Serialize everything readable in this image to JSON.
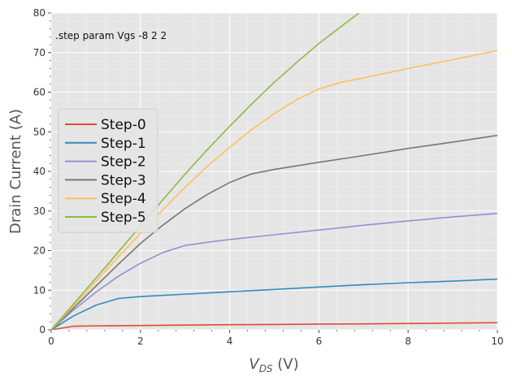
{
  "chart_data": {
    "type": "line",
    "title": "",
    "xlabel": "V",
    "xlabel_sub": "DS",
    "xlabel_unit": " (V)",
    "ylabel": "Drain Current (A)",
    "xlim": [
      0,
      10
    ],
    "ylim": [
      0,
      80
    ],
    "xticks": [
      0,
      2,
      4,
      6,
      8,
      10
    ],
    "yticks": [
      0,
      10,
      20,
      30,
      40,
      50,
      60,
      70,
      80
    ],
    "grid": true,
    "legend_position": "center-left",
    "annotation": ".step param Vgs -8 2 2",
    "background": "#e5e5e5",
    "series": [
      {
        "name": "Step-0",
        "color": "#e24a33",
        "x": [
          0,
          0.5,
          1,
          2,
          3,
          4,
          5,
          6,
          7,
          8,
          9,
          10
        ],
        "y": [
          0,
          0.9,
          1.0,
          1.1,
          1.2,
          1.3,
          1.35,
          1.45,
          1.5,
          1.6,
          1.7,
          1.8
        ]
      },
      {
        "name": "Step-1",
        "color": "#348abd",
        "x": [
          0,
          0.5,
          1,
          1.5,
          2,
          3,
          4,
          5,
          6,
          7,
          8,
          9,
          10
        ],
        "y": [
          0,
          3.5,
          6.2,
          7.9,
          8.4,
          9.0,
          9.6,
          10.2,
          10.8,
          11.4,
          11.9,
          12.3,
          12.8
        ]
      },
      {
        "name": "Step-2",
        "color": "#988ed5",
        "x": [
          0,
          0.5,
          1,
          1.5,
          2,
          2.5,
          3,
          3.5,
          4,
          5,
          6,
          7,
          8,
          9,
          10
        ],
        "y": [
          0,
          5.0,
          9.5,
          13.5,
          16.8,
          19.5,
          21.3,
          22.1,
          22.8,
          24.0,
          25.2,
          26.4,
          27.5,
          28.5,
          29.4
        ]
      },
      {
        "name": "Step-3",
        "color": "#777777",
        "x": [
          0,
          0.5,
          1,
          1.5,
          2,
          2.5,
          3,
          3.5,
          4,
          4.5,
          5,
          6,
          7,
          8,
          9,
          10
        ],
        "y": [
          0,
          5.5,
          11.0,
          16.5,
          21.8,
          26.4,
          30.6,
          34.2,
          37.2,
          39.4,
          40.5,
          42.3,
          44.0,
          45.8,
          47.4,
          49.1
        ]
      },
      {
        "name": "Step-4",
        "color": "#fbc15e",
        "x": [
          0,
          0.5,
          1,
          1.5,
          2,
          2.5,
          3,
          3.5,
          4,
          4.5,
          5,
          5.5,
          6,
          6.5,
          7,
          8,
          9,
          10
        ],
        "y": [
          0,
          6.0,
          12.2,
          18.4,
          24.3,
          30.3,
          36.0,
          41.3,
          46.1,
          50.6,
          54.6,
          58.1,
          60.8,
          62.5,
          63.6,
          66.0,
          68.2,
          70.5
        ]
      },
      {
        "name": "Step-5",
        "color": "#8eba42",
        "x": [
          0,
          0.5,
          1,
          1.5,
          2,
          2.5,
          3,
          3.5,
          4,
          4.5,
          5,
          5.5,
          6,
          6.5,
          6.9
        ],
        "y": [
          0,
          6.5,
          13.0,
          19.6,
          26.2,
          32.8,
          39.3,
          45.5,
          51.4,
          57.1,
          62.5,
          67.5,
          72.3,
          76.6,
          80
        ]
      }
    ]
  }
}
